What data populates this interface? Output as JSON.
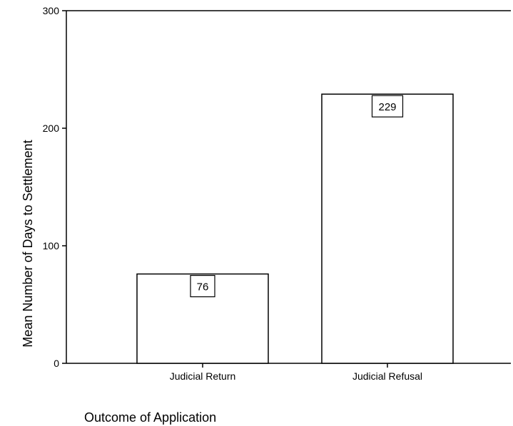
{
  "chart_data": {
    "type": "bar",
    "title": "",
    "xlabel": "Outcome of Application",
    "ylabel": "Mean Number of Days to Settlement",
    "categories": [
      "Judicial Return",
      "Judicial Refusal"
    ],
    "values": [
      76,
      229
    ],
    "value_labels": [
      "76",
      "229"
    ],
    "ylim": [
      0,
      300
    ],
    "yticks": [
      0,
      100,
      200,
      300
    ],
    "ytick_labels": [
      "0",
      "100",
      "200",
      "300"
    ],
    "grid": false,
    "legend": "none",
    "colors": {
      "bar_fill": "#ffffff",
      "bar_stroke": "#000000",
      "axis": "#000000"
    }
  }
}
